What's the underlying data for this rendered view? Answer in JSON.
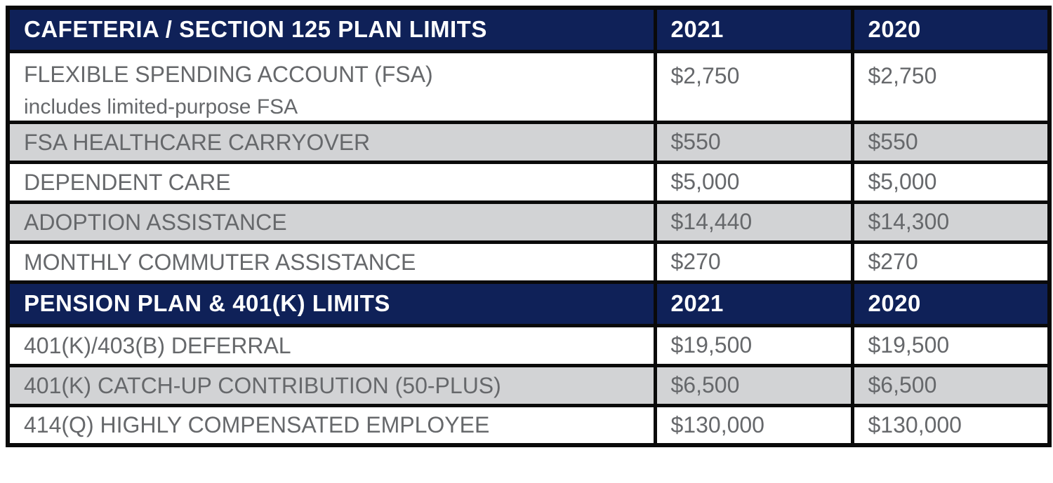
{
  "colors": {
    "navy_header_bg": "#0f2158",
    "header_text": "#ffffff",
    "shaded_row_bg": "#d2d3d5",
    "white_row_bg": "#ffffff",
    "body_text": "#66686b",
    "border": "#0a0a0a"
  },
  "sections": [
    {
      "header": {
        "title": "CAFETERIA / SECTION 125 PLAN LIMITS",
        "col2021": "2021",
        "col2020": "2020"
      },
      "rows": [
        {
          "label": "FLEXIBLE SPENDING ACCOUNT (FSA)",
          "sublabel": "includes limited-purpose FSA",
          "v2021": "$2,750",
          "v2020": "$2,750",
          "shaded": false
        },
        {
          "label": "FSA HEALTHCARE CARRYOVER",
          "v2021": "$550",
          "v2020": "$550",
          "shaded": true
        },
        {
          "label": "DEPENDENT CARE",
          "v2021": "$5,000",
          "v2020": "$5,000",
          "shaded": false
        },
        {
          "label": "ADOPTION ASSISTANCE",
          "v2021": "$14,440",
          "v2020": "$14,300",
          "shaded": true
        },
        {
          "label": "MONTHLY COMMUTER ASSISTANCE",
          "v2021": "$270",
          "v2020": "$270",
          "shaded": false
        }
      ]
    },
    {
      "header": {
        "title": "PENSION PLAN & 401(K) LIMITS",
        "col2021": "2021",
        "col2020": "2020"
      },
      "rows": [
        {
          "label": "401(K)/403(B) DEFERRAL",
          "v2021": "$19,500",
          "v2020": "$19,500",
          "shaded": false
        },
        {
          "label": "401(K) CATCH-UP CONTRIBUTION (50-PLUS)",
          "v2021": "$6,500",
          "v2020": "$6,500",
          "shaded": true
        },
        {
          "label": "414(Q) HIGHLY COMPENSATED EMPLOYEE",
          "v2021": "$130,000",
          "v2020": "$130,000",
          "shaded": false
        }
      ]
    }
  ],
  "chart_data": [
    {
      "type": "table",
      "columns": [
        "CAFETERIA / SECTION 125 PLAN LIMITS",
        "2021",
        "2020"
      ],
      "rows": [
        [
          "FLEXIBLE SPENDING ACCOUNT (FSA) includes limited-purpose FSA",
          "$2,750",
          "$2,750"
        ],
        [
          "FSA HEALTHCARE CARRYOVER",
          "$550",
          "$550"
        ],
        [
          "DEPENDENT CARE",
          "$5,000",
          "$5,000"
        ],
        [
          "ADOPTION ASSISTANCE",
          "$14,440",
          "$14,300"
        ],
        [
          "MONTHLY COMMUTER ASSISTANCE",
          "$270",
          "$270"
        ]
      ]
    },
    {
      "type": "table",
      "columns": [
        "PENSION PLAN & 401(K) LIMITS",
        "2021",
        "2020"
      ],
      "rows": [
        [
          "401(K)/403(B) DEFERRAL",
          "$19,500",
          "$19,500"
        ],
        [
          "401(K) CATCH-UP CONTRIBUTION (50-PLUS)",
          "$6,500",
          "$6,500"
        ],
        [
          "414(Q) HIGHLY COMPENSATED EMPLOYEE",
          "$130,000",
          "$130,000"
        ]
      ]
    }
  ]
}
